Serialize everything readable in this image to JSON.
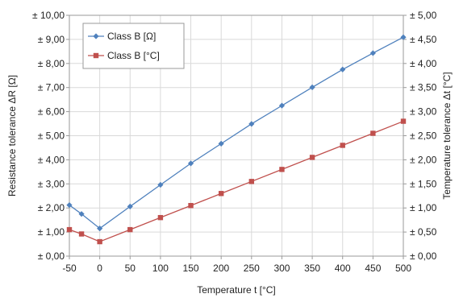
{
  "chart_data": {
    "type": "line",
    "x": [
      -50,
      -30,
      0,
      50,
      100,
      150,
      200,
      250,
      300,
      350,
      400,
      450,
      500
    ],
    "xlabel": "Temperature t [°C]",
    "ylabel_left": "Resistance tolerance ΔR [Ω]",
    "ylabel_right": "Temperature tolerance Δt [°C]",
    "xlim": [
      -50,
      500
    ],
    "ylim_left": [
      0,
      10
    ],
    "ylim_right": [
      0,
      5
    ],
    "x_ticks": [
      {
        "value": -50,
        "label": "-50"
      },
      {
        "value": 0,
        "label": "0"
      },
      {
        "value": 50,
        "label": "50"
      },
      {
        "value": 100,
        "label": "100"
      },
      {
        "value": 150,
        "label": "150"
      },
      {
        "value": 200,
        "label": "200"
      },
      {
        "value": 250,
        "label": "250"
      },
      {
        "value": 300,
        "label": "300"
      },
      {
        "value": 350,
        "label": "350"
      },
      {
        "value": 400,
        "label": "400"
      },
      {
        "value": 450,
        "label": "450"
      },
      {
        "value": 500,
        "label": "500"
      }
    ],
    "y_ticks_left": [
      {
        "value": 0,
        "label": "± 0,00"
      },
      {
        "value": 1,
        "label": "± 1,00"
      },
      {
        "value": 2,
        "label": "± 2,00"
      },
      {
        "value": 3,
        "label": "± 3,00"
      },
      {
        "value": 4,
        "label": "± 4,00"
      },
      {
        "value": 5,
        "label": "± 5,00"
      },
      {
        "value": 6,
        "label": "± 6,00"
      },
      {
        "value": 7,
        "label": "± 7,00"
      },
      {
        "value": 8,
        "label": "± 8,00"
      },
      {
        "value": 9,
        "label": "± 9,00"
      },
      {
        "value": 10,
        "label": "± 10,00"
      }
    ],
    "y_ticks_right": [
      {
        "value": 0,
        "label": "± 0,00"
      },
      {
        "value": 0.5,
        "label": "± 0,50"
      },
      {
        "value": 1,
        "label": "± 1,00"
      },
      {
        "value": 1.5,
        "label": "± 1,50"
      },
      {
        "value": 2,
        "label": "± 2,00"
      },
      {
        "value": 2.5,
        "label": "± 2,50"
      },
      {
        "value": 3,
        "label": "± 3,00"
      },
      {
        "value": 3.5,
        "label": "± 3,50"
      },
      {
        "value": 4,
        "label": "± 4,00"
      },
      {
        "value": 4.5,
        "label": "± 4,50"
      },
      {
        "value": 5,
        "label": "± 5,00"
      }
    ],
    "grid": true,
    "legend_position": "top-left",
    "series": [
      {
        "name": "Class B [Ω]",
        "axis": "left",
        "color": "#4f81bd",
        "marker": "diamond",
        "values": [
          2.12,
          1.75,
          1.15,
          2.06,
          2.96,
          3.85,
          4.67,
          5.49,
          6.25,
          7.01,
          7.75,
          8.43,
          9.09
        ]
      },
      {
        "name": "Class B [°C]",
        "axis": "right",
        "color": "#c0504d",
        "marker": "square",
        "values": [
          0.55,
          0.46,
          0.3,
          0.55,
          0.8,
          1.05,
          1.3,
          1.55,
          1.8,
          2.05,
          2.3,
          2.55,
          2.8
        ]
      }
    ]
  }
}
